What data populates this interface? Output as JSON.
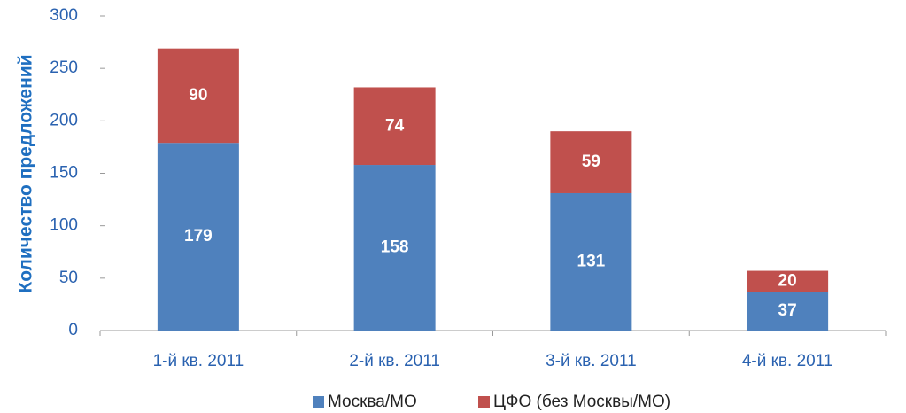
{
  "chart_data": {
    "type": "stacked_bar",
    "y_label": "Количество предложений",
    "categories": [
      "1-й кв. 2011",
      "2-й кв. 2011",
      "3-й кв. 2011",
      "4-й кв. 2011"
    ],
    "series": [
      {
        "name": "Москва/МО",
        "color": "#4f81bd",
        "values": [
          179,
          158,
          131,
          37
        ]
      },
      {
        "name": "ЦФО (без Москвы/МО)",
        "color": "#c0504d",
        "values": [
          90,
          74,
          59,
          20
        ]
      }
    ],
    "ylim": [
      0,
      300
    ],
    "yticks": [
      0,
      50,
      100,
      150,
      200,
      250,
      300
    ],
    "legend": "bottom"
  }
}
